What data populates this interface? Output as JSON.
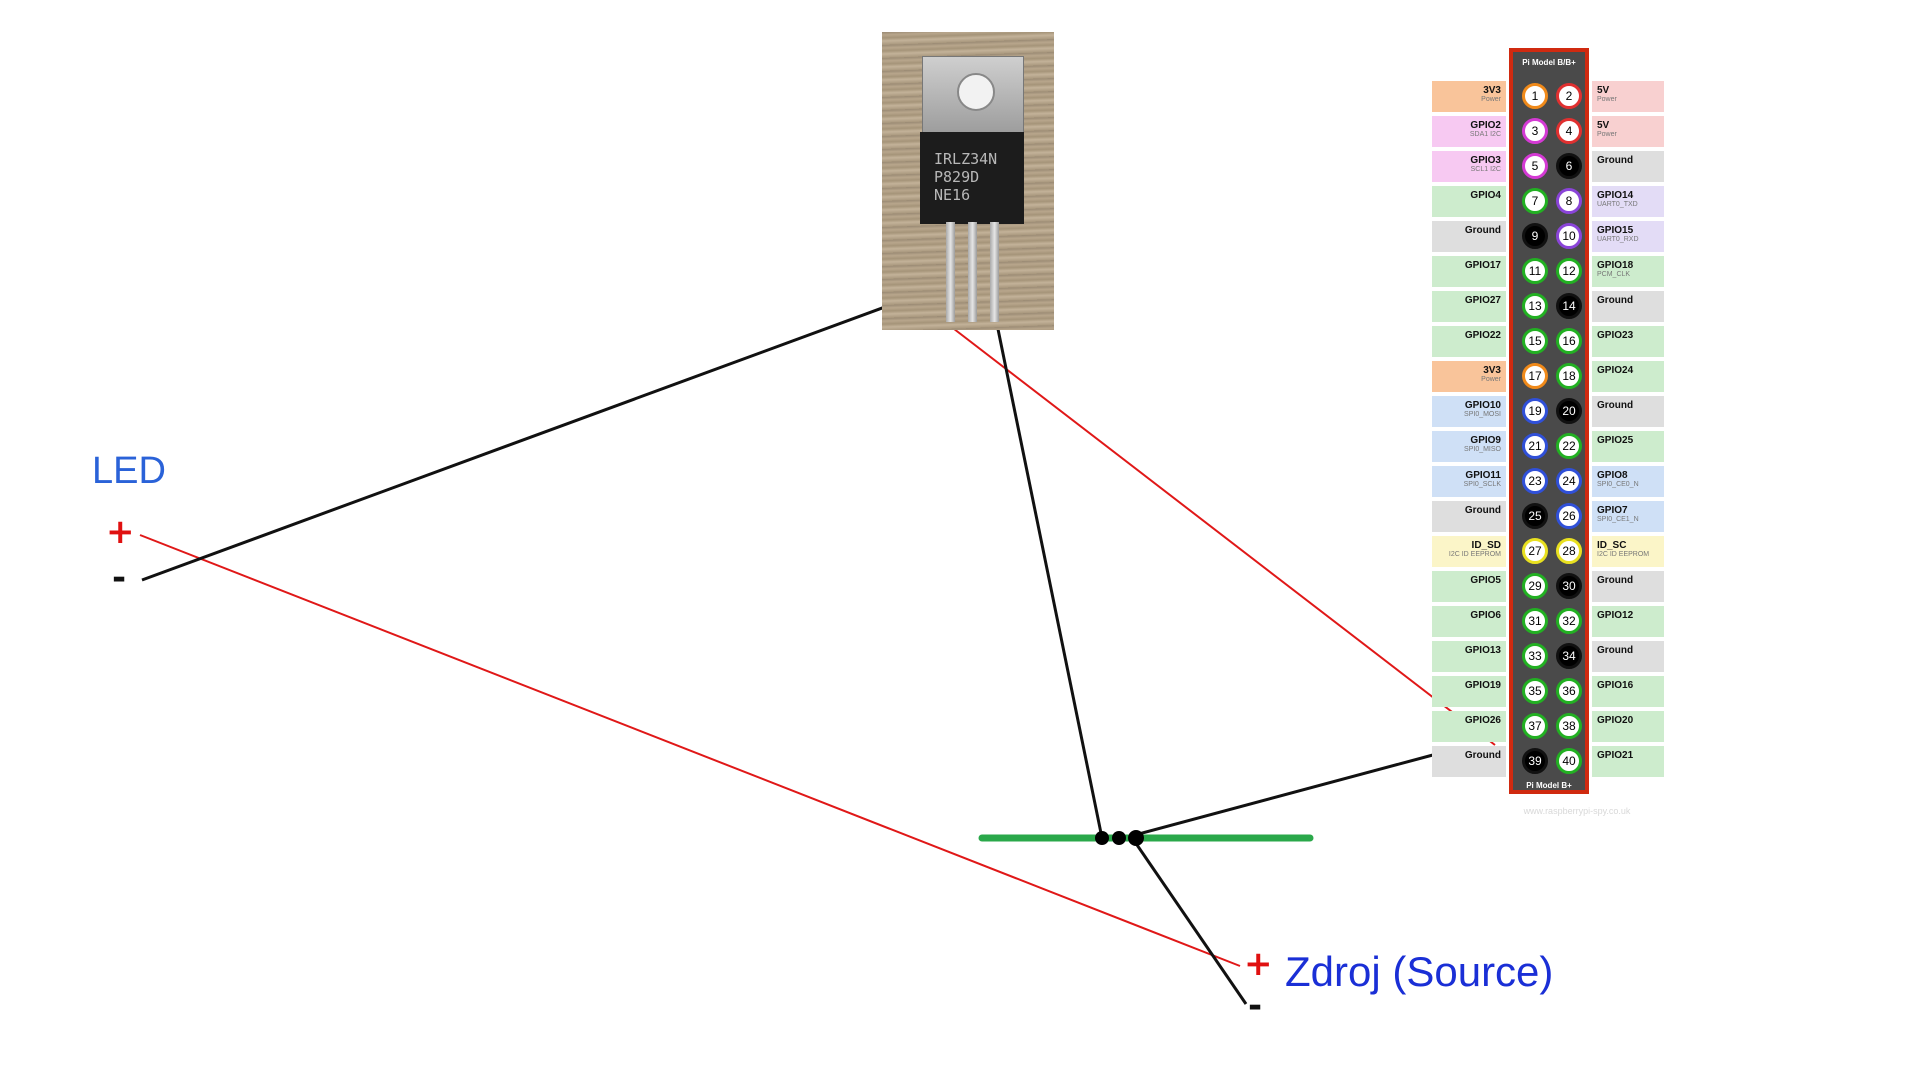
{
  "led": {
    "title": "LED",
    "plus": "+",
    "minus": "-"
  },
  "source": {
    "title": "Zdroj (Source)",
    "plus": "+",
    "minus": "-"
  },
  "transistor": {
    "marking_lines": [
      "IRLZ34N",
      "P829D",
      "NE16"
    ]
  },
  "pinout": {
    "header_title": "Pi Model B/B+",
    "footer_title": "Pi Model B+",
    "watermark": "www.raspberrypi-spy.co.uk",
    "pins": [
      {
        "left": {
          "name": "3V3",
          "sub": "Power",
          "color": "#f9c49a"
        },
        "l": "1",
        "lc": "#f08a1a",
        "lfill": "white",
        "r": "2",
        "rc": "#e03030",
        "rfill": "white",
        "right": {
          "name": "5V",
          "sub": "Power",
          "color": "#f8d0d0"
        }
      },
      {
        "left": {
          "name": "GPIO2",
          "sub": "SDA1 I2C",
          "color": "#f7c9f2"
        },
        "l": "3",
        "lc": "#d43ad4",
        "lfill": "white",
        "r": "4",
        "rc": "#e03030",
        "rfill": "white",
        "right": {
          "name": "5V",
          "sub": "Power",
          "color": "#f8d0d0"
        }
      },
      {
        "left": {
          "name": "GPIO3",
          "sub": "SCL1 I2C",
          "color": "#f7c9f2"
        },
        "l": "5",
        "lc": "#d43ad4",
        "lfill": "white",
        "r": "6",
        "rc": "#111111",
        "rfill": "black",
        "right": {
          "name": "Ground",
          "sub": "",
          "color": "#dedede"
        }
      },
      {
        "left": {
          "name": "GPIO4",
          "sub": "",
          "color": "#cdeccd"
        },
        "l": "7",
        "lc": "#22b022",
        "lfill": "white",
        "r": "8",
        "rc": "#8a44d8",
        "rfill": "white",
        "right": {
          "name": "GPIO14",
          "sub": "UART0_TXD",
          "color": "#e3dcf6"
        }
      },
      {
        "left": {
          "name": "Ground",
          "sub": "",
          "color": "#dedede"
        },
        "l": "9",
        "lc": "#111111",
        "lfill": "black",
        "r": "10",
        "rc": "#8a44d8",
        "rfill": "white",
        "right": {
          "name": "GPIO15",
          "sub": "UART0_RXD",
          "color": "#e3dcf6"
        }
      },
      {
        "left": {
          "name": "GPIO17",
          "sub": "",
          "color": "#cdeccd"
        },
        "l": "11",
        "lc": "#22b022",
        "lfill": "white",
        "r": "12",
        "rc": "#22b022",
        "rfill": "white",
        "right": {
          "name": "GPIO18",
          "sub": "PCM_CLK",
          "color": "#cdeccd"
        }
      },
      {
        "left": {
          "name": "GPIO27",
          "sub": "",
          "color": "#cdeccd"
        },
        "l": "13",
        "lc": "#22b022",
        "lfill": "white",
        "r": "14",
        "rc": "#111111",
        "rfill": "black",
        "right": {
          "name": "Ground",
          "sub": "",
          "color": "#dedede"
        }
      },
      {
        "left": {
          "name": "GPIO22",
          "sub": "",
          "color": "#cdeccd"
        },
        "l": "15",
        "lc": "#22b022",
        "lfill": "white",
        "r": "16",
        "rc": "#22b022",
        "rfill": "white",
        "right": {
          "name": "GPIO23",
          "sub": "",
          "color": "#cdeccd"
        }
      },
      {
        "left": {
          "name": "3V3",
          "sub": "Power",
          "color": "#f9c49a"
        },
        "l": "17",
        "lc": "#f08a1a",
        "lfill": "white",
        "r": "18",
        "rc": "#22b022",
        "rfill": "white",
        "right": {
          "name": "GPIO24",
          "sub": "",
          "color": "#cdeccd"
        }
      },
      {
        "left": {
          "name": "GPIO10",
          "sub": "SPI0_MOSI",
          "color": "#cfe0f6"
        },
        "l": "19",
        "lc": "#3050d8",
        "lfill": "white",
        "r": "20",
        "rc": "#111111",
        "rfill": "black",
        "right": {
          "name": "Ground",
          "sub": "",
          "color": "#dedede"
        }
      },
      {
        "left": {
          "name": "GPIO9",
          "sub": "SPI0_MISO",
          "color": "#cfe0f6"
        },
        "l": "21",
        "lc": "#3050d8",
        "lfill": "white",
        "r": "22",
        "rc": "#22b022",
        "rfill": "white",
        "right": {
          "name": "GPIO25",
          "sub": "",
          "color": "#cdeccd"
        }
      },
      {
        "left": {
          "name": "GPIO11",
          "sub": "SPI0_SCLK",
          "color": "#cfe0f6"
        },
        "l": "23",
        "lc": "#3050d8",
        "lfill": "white",
        "r": "24",
        "rc": "#3050d8",
        "rfill": "white",
        "right": {
          "name": "GPIO8",
          "sub": "SPI0_CE0_N",
          "color": "#cfe0f6"
        }
      },
      {
        "left": {
          "name": "Ground",
          "sub": "",
          "color": "#dedede"
        },
        "l": "25",
        "lc": "#111111",
        "lfill": "black",
        "r": "26",
        "rc": "#3050d8",
        "rfill": "white",
        "right": {
          "name": "GPIO7",
          "sub": "SPI0_CE1_N",
          "color": "#cfe0f6"
        }
      },
      {
        "left": {
          "name": "ID_SD",
          "sub": "I2C ID EEPROM",
          "color": "#fbf5c8"
        },
        "l": "27",
        "lc": "#e8e020",
        "lfill": "white",
        "r": "28",
        "rc": "#e8e020",
        "rfill": "white",
        "right": {
          "name": "ID_SC",
          "sub": "I2C ID EEPROM",
          "color": "#fbf5c8"
        }
      },
      {
        "left": {
          "name": "GPIO5",
          "sub": "",
          "color": "#cdeccd"
        },
        "l": "29",
        "lc": "#22b022",
        "lfill": "white",
        "r": "30",
        "rc": "#111111",
        "rfill": "black",
        "right": {
          "name": "Ground",
          "sub": "",
          "color": "#dedede"
        }
      },
      {
        "left": {
          "name": "GPIO6",
          "sub": "",
          "color": "#cdeccd"
        },
        "l": "31",
        "lc": "#22b022",
        "lfill": "white",
        "r": "32",
        "rc": "#22b022",
        "rfill": "white",
        "right": {
          "name": "GPIO12",
          "sub": "",
          "color": "#cdeccd"
        }
      },
      {
        "left": {
          "name": "GPIO13",
          "sub": "",
          "color": "#cdeccd"
        },
        "l": "33",
        "lc": "#22b022",
        "lfill": "white",
        "r": "34",
        "rc": "#111111",
        "rfill": "black",
        "right": {
          "name": "Ground",
          "sub": "",
          "color": "#dedede"
        }
      },
      {
        "left": {
          "name": "GPIO19",
          "sub": "",
          "color": "#cdeccd"
        },
        "l": "35",
        "lc": "#22b022",
        "lfill": "white",
        "r": "36",
        "rc": "#22b022",
        "rfill": "white",
        "right": {
          "name": "GPIO16",
          "sub": "",
          "color": "#cdeccd"
        }
      },
      {
        "left": {
          "name": "GPIO26",
          "sub": "",
          "color": "#cdeccd"
        },
        "l": "37",
        "lc": "#22b022",
        "lfill": "white",
        "r": "38",
        "rc": "#22b022",
        "rfill": "white",
        "right": {
          "name": "GPIO20",
          "sub": "",
          "color": "#cdeccd"
        }
      },
      {
        "left": {
          "name": "Ground",
          "sub": "",
          "color": "#dedede"
        },
        "l": "39",
        "lc": "#111111",
        "lfill": "black",
        "r": "40",
        "rc": "#22b022",
        "rfill": "white",
        "right": {
          "name": "GPIO21",
          "sub": "",
          "color": "#cdeccd"
        }
      }
    ]
  },
  "colors": {
    "wire_positive": "#e01818",
    "wire_negative": "#111111",
    "ground_bus": "#2aa84a",
    "led_label": "#2a62d8",
    "source_label": "#1a2fd6"
  }
}
